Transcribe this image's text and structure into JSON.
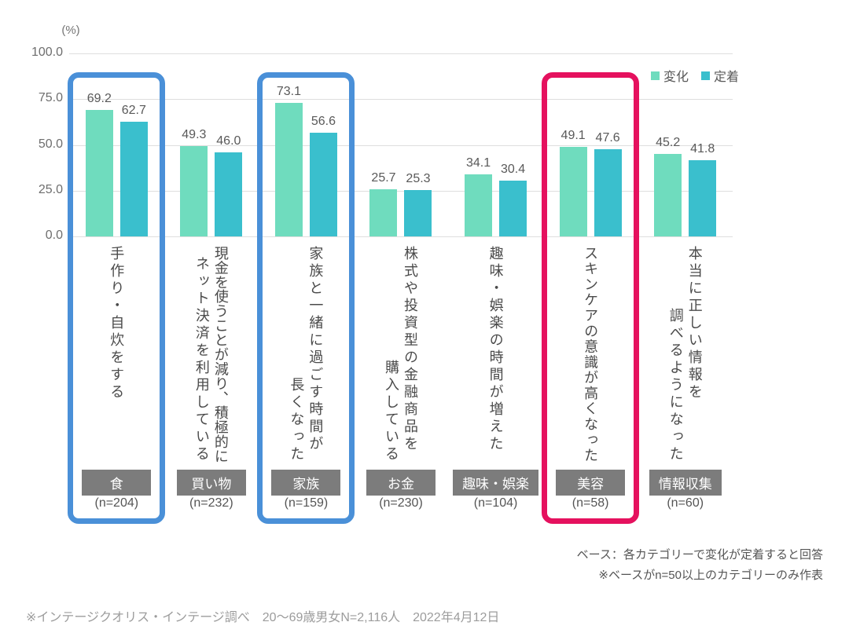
{
  "chart_data": {
    "type": "bar",
    "title": "",
    "unit_label": "(%)",
    "ylabel": "(%)",
    "ylim": [
      0,
      100
    ],
    "grid": true,
    "legend_position": "top-right",
    "y_axis": {
      "ticks": [
        0,
        25,
        50,
        75,
        100
      ],
      "tick_labels": [
        "0.0",
        "25.0",
        "50.0",
        "75.0",
        "100.0"
      ]
    },
    "series": [
      {
        "name": "変化",
        "color": "#6FDCBE",
        "values": [
          69.2,
          49.3,
          73.1,
          25.7,
          34.1,
          49.1,
          45.2
        ]
      },
      {
        "name": "定着",
        "color": "#3ABFCD",
        "values": [
          62.7,
          46.0,
          56.6,
          25.3,
          30.4,
          47.6,
          41.8
        ]
      }
    ],
    "categories": [
      "手作り・自炊をする",
      "現金を使うことが減り、積極的にネット決済を利用している",
      "家族と一緒に過ごす時間が長くなった",
      "株式や投資型の金融商品を購入している",
      "趣味・娯楽の時間が増えた",
      "スキンケアの意識が高くなった",
      "本当に正しい情報を調べるようになった"
    ],
    "groups": [
      {
        "label_lines": [
          "手作り・自炊をする"
        ],
        "badge": "食",
        "n": "(n=204)",
        "values": [
          69.2,
          62.7
        ]
      },
      {
        "label_lines": [
          "現金を使うことが減り、積極的に",
          "ネット決済を利用している"
        ],
        "badge": "買い物",
        "n": "(n=232)",
        "values": [
          49.3,
          46.0
        ]
      },
      {
        "label_lines": [
          "家族と一緒に過ごす時間が",
          "長くなった"
        ],
        "badge": "家族",
        "n": "(n=159)",
        "values": [
          73.1,
          56.6
        ]
      },
      {
        "label_lines": [
          "株式や投資型の金融商品を",
          "購入している"
        ],
        "badge": "お金",
        "n": "(n=230)",
        "values": [
          25.7,
          25.3
        ]
      },
      {
        "label_lines": [
          "趣味・娯楽の時間が増えた"
        ],
        "badge": "趣味・娯楽",
        "n": "(n=104)",
        "values": [
          34.1,
          30.4
        ]
      },
      {
        "label_lines": [
          "スキンケアの意識が高くなった"
        ],
        "badge": "美容",
        "n": "(n=58)",
        "values": [
          49.1,
          47.6
        ]
      },
      {
        "label_lines": [
          "本当に正しい情報を",
          "調べるようになった"
        ],
        "badge": "情報収集",
        "n": "(n=60)",
        "values": [
          45.2,
          41.8
        ]
      }
    ],
    "highlights": [
      {
        "group": 0,
        "color": "#4A90D8"
      },
      {
        "group": 2,
        "color": "#4A90D8"
      },
      {
        "group": 5,
        "color": "#E5115E"
      }
    ]
  },
  "notes": {
    "line1": "ベース：各カテゴリーで変化が定着すると回答",
    "line2": "※ベースがn=50以上のカテゴリーのみ作表"
  },
  "source": "※インテージクオリス・インテージ調べ　20～69歳男女N=2,116人　2022年4月12日",
  "colors": {
    "grid": "#DEDEDE",
    "axis_text": "#6E6E6E",
    "value_text": "#595959",
    "category_text": "#4A4A4A",
    "badge_bg": "#7C7C7C",
    "badge_text": "#FFFFFF",
    "note_text": "#555555",
    "source_text": "#9C9C9C"
  }
}
